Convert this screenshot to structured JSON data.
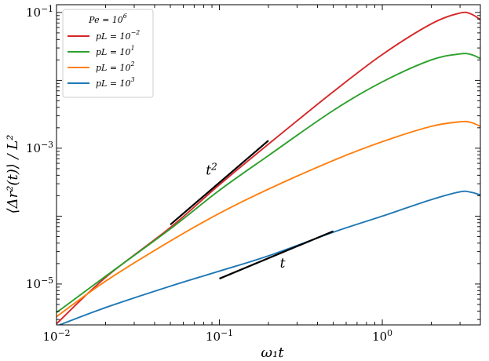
{
  "chart_data": {
    "type": "line",
    "title": "",
    "xlabel": "ω₁t",
    "ylabel": "⟨Δr²(t)⟩ / L²",
    "xscale": "log",
    "yscale": "log",
    "xlim": [
      0.01,
      4
    ],
    "ylim": [
      2.5e-06,
      0.13
    ],
    "x_ticks": [
      {
        "value": 0.01,
        "base": "10",
        "exp": "−2"
      },
      {
        "value": 0.1,
        "base": "10",
        "exp": "−1"
      },
      {
        "value": 1,
        "base": "10",
        "exp": "0"
      }
    ],
    "y_ticks": [
      {
        "value": 1e-05,
        "base": "10",
        "exp": "−5"
      },
      {
        "value": 0.001,
        "base": "10",
        "exp": "−3"
      },
      {
        "value": 0.1,
        "base": "10",
        "exp": "−1"
      }
    ],
    "grid": false,
    "legend": {
      "placement": "top-left",
      "title": {
        "base": "Pe = 10",
        "exp": "6"
      }
    },
    "x": [
      0.01,
      0.02,
      0.05,
      0.1,
      0.2,
      0.5,
      1.0,
      2.0,
      3.0,
      3.5,
      4.0
    ],
    "series": [
      {
        "name": "pL = 10⁻²",
        "label_base": "pL = 10",
        "label_exp": "−2",
        "color": "#d62728",
        "values": [
          2.6e-06,
          1.25e-05,
          6.8e-05,
          0.00029,
          0.00115,
          0.0068,
          0.024,
          0.068,
          0.098,
          0.095,
          0.078
        ]
      },
      {
        "name": "pL = 10¹",
        "label_base": "pL = 10",
        "label_exp": "1",
        "color": "#2ca02c",
        "values": [
          3.8e-06,
          1.3e-05,
          6.5e-05,
          0.00024,
          0.00078,
          0.0036,
          0.0095,
          0.02,
          0.0245,
          0.024,
          0.021
        ]
      },
      {
        "name": "pL = 10²",
        "label_base": "pL = 10",
        "label_exp": "2",
        "color": "#ff7f0e",
        "values": [
          3.3e-06,
          1.1e-05,
          4.3e-05,
          0.00011,
          0.00025,
          0.00066,
          0.00125,
          0.0021,
          0.00245,
          0.0024,
          0.0021
        ]
      },
      {
        "name": "pL = 10³",
        "label_base": "pL = 10",
        "label_exp": "3",
        "color": "#1f77b4",
        "values": [
          2.4e-06,
          4.5e-06,
          9.3e-06,
          1.55e-05,
          2.6e-05,
          5.8e-05,
          0.0001,
          0.000175,
          0.000228,
          0.000225,
          0.000205
        ]
      }
    ],
    "annotations": [
      {
        "label": "t",
        "sup": "2",
        "from": [
          0.05,
          7.5e-05
        ],
        "to": [
          0.2,
          0.0013
        ]
      },
      {
        "label": "t",
        "sup": "",
        "from": [
          0.1,
          1.2e-05
        ],
        "to": [
          0.5,
          6e-05
        ]
      }
    ]
  }
}
